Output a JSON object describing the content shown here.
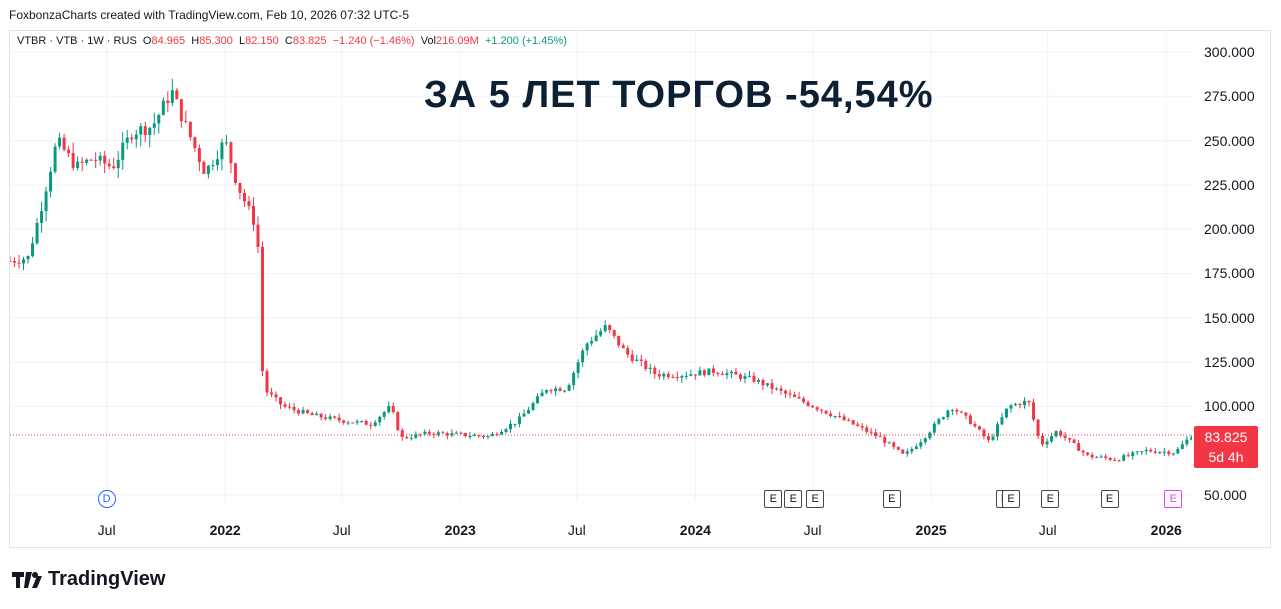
{
  "header": {
    "credit": "FoxbonzaCharts created with TradingView.com, Feb 10, 2026 07:32 UTC-5"
  },
  "legend": {
    "symbol": "VTBR · VTB · 1W · RUS",
    "o_label": "O",
    "o_value": "84.965",
    "h_label": "H",
    "h_value": "85.300",
    "l_label": "L",
    "l_value": "82.150",
    "c_label": "C",
    "c_value": "83.825",
    "change": "−1.240 (−1.46%)",
    "vol_label": "Vol",
    "vol_value": "216.09M",
    "vol_change": "+1.200 (+1.45%)"
  },
  "annotation": "ЗА 5 ЛЕТ ТОРГОВ -54,54%",
  "price_label": {
    "price": "83.825",
    "countdown": "5d 4h"
  },
  "markers": {
    "dividend": "D",
    "earnings": "E"
  },
  "footer": {
    "brand": "TradingView"
  },
  "colors": {
    "up": "#089981",
    "down": "#f23645",
    "grid": "#f0f3fa",
    "price_line": "#f23645"
  },
  "chart_data": {
    "type": "candlestick",
    "title": "ЗА 5 ЛЕТ ТОРГОВ -54,54%",
    "y_ticks": [
      "300.000",
      "275.000",
      "250.000",
      "225.000",
      "200.000",
      "175.000",
      "150.000",
      "125.000",
      "100.000",
      "50.000"
    ],
    "y_range": [
      45,
      305
    ],
    "x_ticks": [
      {
        "label": "Jul",
        "bold": false
      },
      {
        "label": "2022",
        "bold": true
      },
      {
        "label": "Jul",
        "bold": false
      },
      {
        "label": "2023",
        "bold": true
      },
      {
        "label": "Jul",
        "bold": false
      },
      {
        "label": "2024",
        "bold": true
      },
      {
        "label": "Jul",
        "bold": false
      },
      {
        "label": "2025",
        "bold": true
      },
      {
        "label": "Jul",
        "bold": false
      },
      {
        "label": "2026",
        "bold": true
      }
    ],
    "x_range": [
      "2021-02-01",
      "2026-02-10"
    ],
    "last_close": 83.825,
    "earnings_dates": [
      "2024-05-01",
      "2024-06-01",
      "2024-07-05",
      "2024-11-01",
      "2025-04-25",
      "2025-05-05",
      "2025-07-05",
      "2025-10-05",
      "2026-01-12"
    ],
    "dividend_date": "2021-07-01",
    "price_path": [
      [
        "2021-02-01",
        182
      ],
      [
        "2021-03-01",
        184
      ],
      [
        "2021-03-20",
        210
      ],
      [
        "2021-04-15",
        250
      ],
      [
        "2021-05-15",
        235
      ],
      [
        "2021-06-10",
        240
      ],
      [
        "2021-07-10",
        235
      ],
      [
        "2021-08-10",
        255
      ],
      [
        "2021-09-10",
        258
      ],
      [
        "2021-10-10",
        278
      ],
      [
        "2021-11-01",
        258
      ],
      [
        "2021-12-01",
        232
      ],
      [
        "2022-01-01",
        250
      ],
      [
        "2022-01-20",
        225
      ],
      [
        "2022-02-20",
        200
      ],
      [
        "2022-03-01",
        110
      ],
      [
        "2022-04-01",
        100
      ],
      [
        "2022-05-15",
        95
      ],
      [
        "2022-07-01",
        92
      ],
      [
        "2022-08-15",
        90
      ],
      [
        "2022-09-15",
        100
      ],
      [
        "2022-10-01",
        82
      ],
      [
        "2022-11-15",
        85
      ],
      [
        "2023-01-01",
        84
      ],
      [
        "2023-02-15",
        83
      ],
      [
        "2023-04-01",
        92
      ],
      [
        "2023-05-15",
        110
      ],
      [
        "2023-06-15",
        110
      ],
      [
        "2023-07-15",
        135
      ],
      [
        "2023-08-15",
        145
      ],
      [
        "2023-09-15",
        130
      ],
      [
        "2023-11-01",
        118
      ],
      [
        "2023-12-15",
        118
      ],
      [
        "2024-02-01",
        120
      ],
      [
        "2024-04-01",
        115
      ],
      [
        "2024-06-01",
        105
      ],
      [
        "2024-07-15",
        98
      ],
      [
        "2024-09-01",
        90
      ],
      [
        "2024-10-15",
        82
      ],
      [
        "2024-11-20",
        72
      ],
      [
        "2024-12-20",
        82
      ],
      [
        "2025-02-01",
        100
      ],
      [
        "2025-03-01",
        92
      ],
      [
        "2025-04-01",
        80
      ],
      [
        "2025-05-01",
        100
      ],
      [
        "2025-06-01",
        103
      ],
      [
        "2025-06-20",
        78
      ],
      [
        "2025-07-15",
        86
      ],
      [
        "2025-09-01",
        72
      ],
      [
        "2025-10-15",
        70
      ],
      [
        "2025-12-01",
        75
      ],
      [
        "2026-01-15",
        74
      ],
      [
        "2026-02-10",
        84
      ]
    ]
  }
}
